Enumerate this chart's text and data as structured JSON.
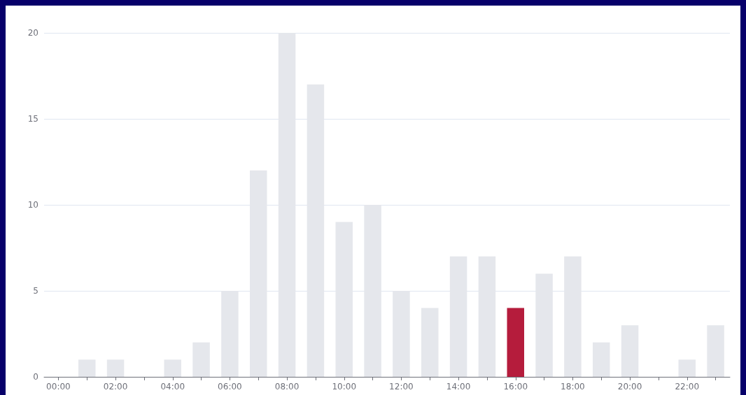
{
  "chart_data": {
    "type": "bar",
    "categories": [
      "00:00",
      null,
      "02:00",
      null,
      "04:00",
      null,
      "06:00",
      null,
      "08:00",
      null,
      "10:00",
      null,
      "12:00",
      null,
      "14:00",
      null,
      "16:00",
      null,
      "18:00",
      null,
      "20:00",
      null,
      "22:00",
      null
    ],
    "values": [
      0,
      1,
      1,
      0,
      1,
      2,
      5,
      12,
      20,
      17,
      9,
      10,
      5,
      4,
      7,
      7,
      4,
      6,
      7,
      2,
      3,
      0,
      1,
      3
    ],
    "colors": [
      "#e5e7ec",
      "#e5e7ec",
      "#e5e7ec",
      "#e5e7ec",
      "#e5e7ec",
      "#e5e7ec",
      "#e5e7ec",
      "#e5e7ec",
      "#e5e7ec",
      "#e5e7ec",
      "#e5e7ec",
      "#e5e7ec",
      "#e5e7ec",
      "#e5e7ec",
      "#e5e7ec",
      "#e5e7ec",
      "#b51c3c",
      "#e5e7ec",
      "#e5e7ec",
      "#e5e7ec",
      "#e5e7ec",
      "#e5e7ec",
      "#e5e7ec",
      "#e5e7ec"
    ],
    "ylim": [
      0,
      20
    ],
    "yticks": [
      0,
      5,
      10,
      15,
      20
    ],
    "grid": "y"
  }
}
